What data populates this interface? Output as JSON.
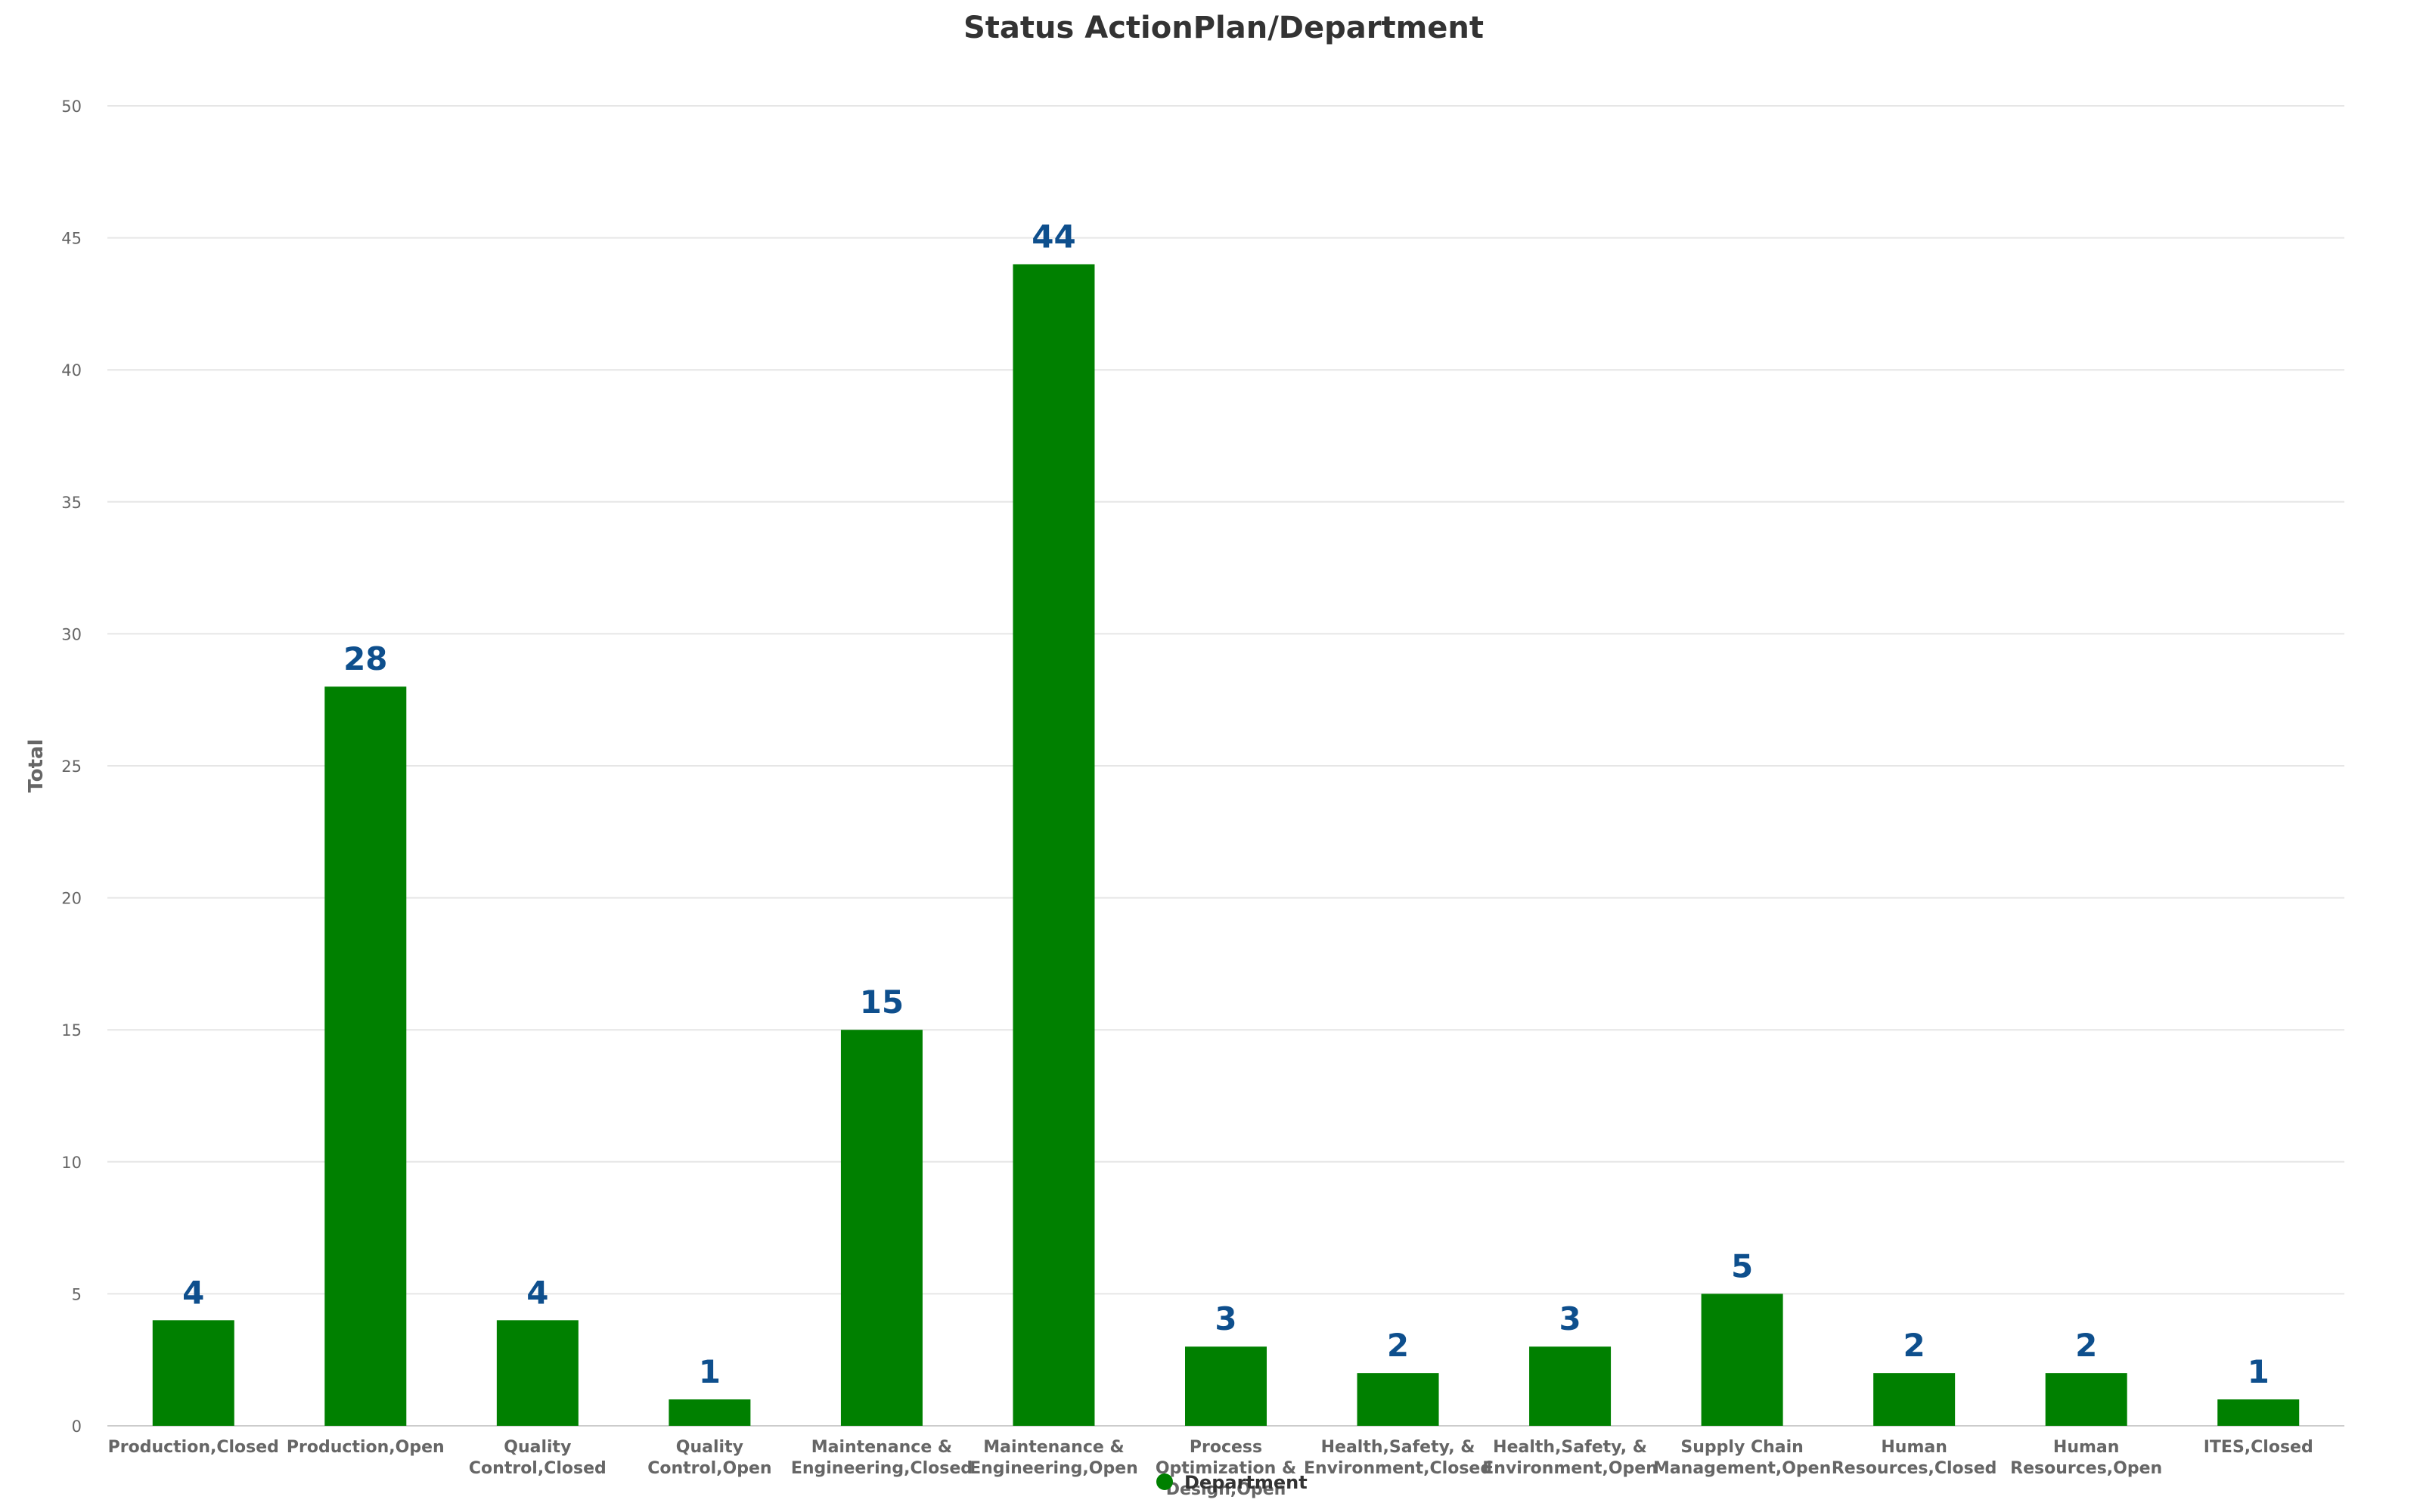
{
  "chart_data": {
    "type": "bar",
    "title": "Status ActionPlan/Department",
    "xlabel": "",
    "ylabel": "Total",
    "ylim": [
      0,
      50
    ],
    "yticks": [
      0,
      5,
      10,
      15,
      20,
      25,
      30,
      35,
      40,
      45,
      50
    ],
    "grid": true,
    "legend": {
      "placement": "bottom-center",
      "entries": [
        "Department"
      ]
    },
    "bar_color": "#008000",
    "label_color": "#0e4f8d",
    "categories": [
      "Production,Closed",
      "Production,Open",
      "Quality Control,Closed",
      "Quality Control,Open",
      "Maintenance & Engineering,Closed",
      "Maintenance & Engineering,Open",
      "Process Optimization & Design,Open",
      "Health,Safety, & Environment,Closed",
      "Health,Safety, & Environment,Open",
      "Supply Chain Management,Open",
      "Human Resources,Closed",
      "Human Resources,Open",
      "ITES,Closed"
    ],
    "category_lines": [
      [
        "Production,Closed"
      ],
      [
        "Production,Open"
      ],
      [
        "Quality",
        "Control,Closed"
      ],
      [
        "Quality",
        "Control,Open"
      ],
      [
        "Maintenance &",
        "Engineering,Closed"
      ],
      [
        "Maintenance &",
        "Engineering,Open"
      ],
      [
        "Process",
        "Optimization &",
        "Design,Open"
      ],
      [
        "Health,Safety, &",
        "Environment,Closed"
      ],
      [
        "Health,Safety, &",
        "Environment,Open"
      ],
      [
        "Supply Chain",
        "Management,Open"
      ],
      [
        "Human",
        "Resources,Closed"
      ],
      [
        "Human",
        "Resources,Open"
      ],
      [
        "ITES,Closed"
      ]
    ],
    "series": [
      {
        "name": "Department",
        "values": [
          4,
          28,
          4,
          1,
          15,
          44,
          3,
          2,
          3,
          5,
          2,
          2,
          1
        ]
      }
    ]
  }
}
